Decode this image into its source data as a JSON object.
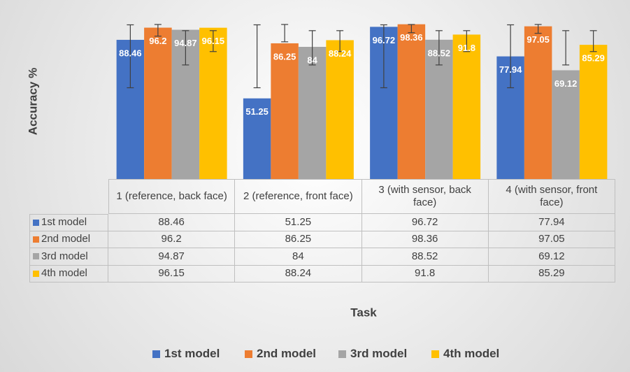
{
  "chart_data": {
    "type": "bar",
    "y_label": "Accuracy %",
    "x_label": "Task",
    "categories": [
      "1 (reference, back face)",
      "2 (reference, front face)",
      "3 (with sensor, back face)",
      "4 (with sensor, front face)"
    ],
    "series": [
      {
        "name": "1st model",
        "color": "#4472c4",
        "values": [
          88.46,
          51.25,
          96.72,
          77.94
        ],
        "error_range": [
          [
            58,
            98
          ],
          [
            58,
            98
          ],
          [
            58,
            98
          ],
          [
            58,
            98
          ]
        ]
      },
      {
        "name": "2nd model",
        "color": "#ed7d31",
        "values": [
          96.2,
          86.25,
          98.36,
          97.05
        ],
        "error_range": [
          [
            90.8,
            99.2
          ],
          [
            87.2,
            99
          ],
          [
            93,
            98.8
          ],
          [
            92.6,
            99
          ]
        ]
      },
      {
        "name": "3rd model",
        "color": "#a5a5a5",
        "values": [
          94.87,
          84,
          88.52,
          69.12
        ],
        "error_range": [
          [
            72.5,
            94.3
          ],
          [
            72.5,
            94.3
          ],
          [
            72.5,
            94.3
          ],
          [
            72.5,
            94.3
          ]
        ]
      },
      {
        "name": "4th model",
        "color": "#ffc000",
        "values": [
          96.15,
          88.24,
          91.8,
          85.29
        ],
        "error_range": [
          [
            81,
            94.3
          ],
          [
            81,
            94.3
          ],
          [
            81,
            94.3
          ],
          [
            81,
            94.3
          ]
        ]
      }
    ],
    "ylim": [
      0,
      100
    ],
    "legend": "bottom",
    "data_table": true
  }
}
